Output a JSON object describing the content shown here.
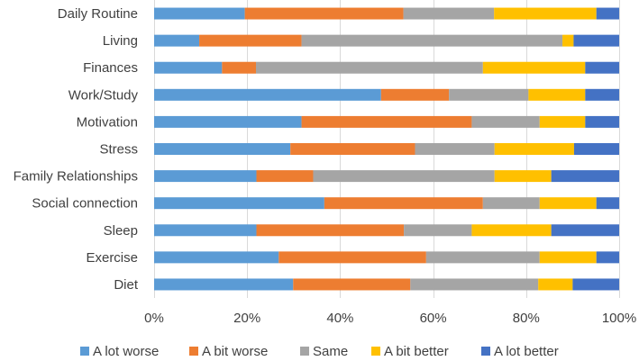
{
  "chart_data": {
    "type": "bar",
    "orientation": "horizontal",
    "stacked": "percent",
    "categories": [
      "Daily Routine",
      "Living",
      "Finances",
      "Work/Study",
      "Motivation",
      "Stress",
      "Family Relationships",
      "Social connection",
      "Sleep",
      "Exercise",
      "Diet"
    ],
    "series": [
      {
        "name": "A lot worse",
        "color": "#5B9BD5",
        "values": [
          19.5,
          9.7,
          14.6,
          48.8,
          31.7,
          29.3,
          22.0,
          36.6,
          22.0,
          26.8,
          29.9
        ]
      },
      {
        "name": "A bit worse",
        "color": "#ED7D31",
        "values": [
          34.1,
          22.0,
          7.3,
          14.6,
          36.6,
          26.8,
          12.2,
          34.1,
          31.7,
          31.7,
          25.2
        ]
      },
      {
        "name": "Same",
        "color": "#A5A5A5",
        "values": [
          19.5,
          56.1,
          48.8,
          17.1,
          14.6,
          17.1,
          39.0,
          12.2,
          14.6,
          24.4,
          27.5
        ]
      },
      {
        "name": "A bit better",
        "color": "#FFC000",
        "values": [
          22.0,
          2.4,
          22.0,
          12.2,
          9.8,
          17.1,
          12.2,
          12.2,
          17.1,
          12.2,
          7.4
        ]
      },
      {
        "name": "A lot better",
        "color": "#4472C4",
        "values": [
          4.9,
          9.8,
          7.3,
          7.3,
          7.3,
          9.7,
          14.6,
          4.9,
          14.6,
          4.9,
          10.0
        ]
      }
    ],
    "x_ticks": [
      "0%",
      "20%",
      "40%",
      "60%",
      "80%",
      "100%"
    ],
    "xlim": [
      0,
      100
    ],
    "title": "",
    "xlabel": "",
    "ylabel": "",
    "grid": true,
    "legend_position": "bottom"
  }
}
